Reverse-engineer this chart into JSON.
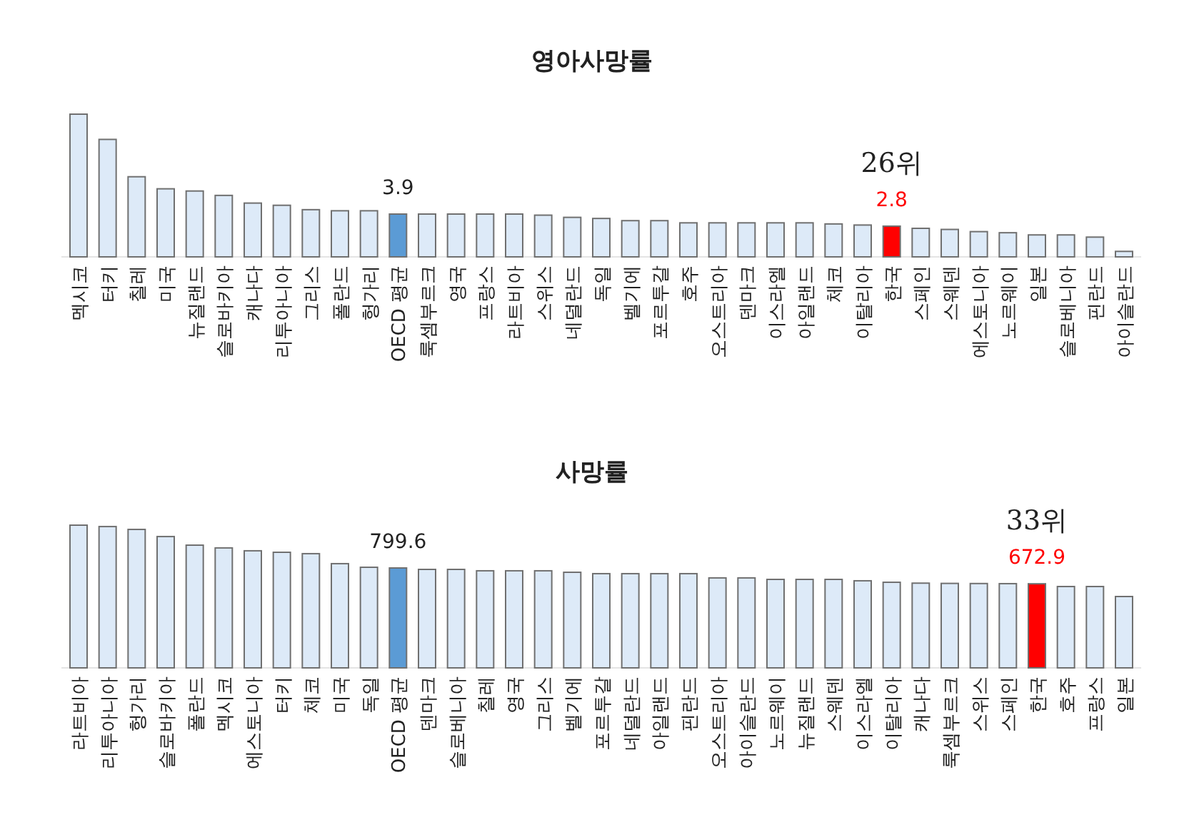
{
  "chart_data": [
    {
      "type": "bar",
      "title": "영아사망률",
      "categories": [
        "멕시코",
        "터키",
        "칠레",
        "미국",
        "뉴질랜드",
        "슬로바키아",
        "캐나다",
        "리투아니아",
        "그리스",
        "폴란드",
        "헝가리",
        "OECD 평균",
        "룩셈부르크",
        "영국",
        "프랑스",
        "라트비아",
        "스위스",
        "네덜란드",
        "독일",
        "벨기에",
        "포르투갈",
        "호주",
        "오스트리아",
        "덴마크",
        "이스라엘",
        "아일랜드",
        "체코",
        "이탈리아",
        "한국",
        "스페인",
        "스웨덴",
        "에스토니아",
        "노르웨이",
        "일본",
        "슬로베니아",
        "핀란드",
        "아이슬란드"
      ],
      "values": [
        13.0,
        10.7,
        7.3,
        6.2,
        6.0,
        5.6,
        4.9,
        4.7,
        4.3,
        4.2,
        4.2,
        3.9,
        3.9,
        3.9,
        3.9,
        3.9,
        3.8,
        3.6,
        3.5,
        3.3,
        3.3,
        3.1,
        3.1,
        3.1,
        3.1,
        3.1,
        3.0,
        2.9,
        2.8,
        2.6,
        2.5,
        2.3,
        2.2,
        2.0,
        2.0,
        1.8,
        0.5
      ],
      "colors": [
        "#ddeaf8",
        "#ddeaf8",
        "#ddeaf8",
        "#ddeaf8",
        "#ddeaf8",
        "#ddeaf8",
        "#ddeaf8",
        "#ddeaf8",
        "#ddeaf8",
        "#ddeaf8",
        "#ddeaf8",
        "#5b9bd5",
        "#ddeaf8",
        "#ddeaf8",
        "#ddeaf8",
        "#ddeaf8",
        "#ddeaf8",
        "#ddeaf8",
        "#ddeaf8",
        "#ddeaf8",
        "#ddeaf8",
        "#ddeaf8",
        "#ddeaf8",
        "#ddeaf8",
        "#ddeaf8",
        "#ddeaf8",
        "#ddeaf8",
        "#ddeaf8",
        "#ff0000",
        "#ddeaf8",
        "#ddeaf8",
        "#ddeaf8",
        "#ddeaf8",
        "#ddeaf8",
        "#ddeaf8",
        "#ddeaf8",
        "#ddeaf8"
      ],
      "value_labels": [
        null,
        null,
        null,
        null,
        null,
        null,
        null,
        null,
        null,
        null,
        null,
        "3.9",
        null,
        null,
        null,
        null,
        null,
        null,
        null,
        null,
        null,
        null,
        null,
        null,
        null,
        null,
        null,
        null,
        "2.8",
        null,
        null,
        null,
        null,
        null,
        null,
        null,
        null
      ],
      "annotations": [
        "26위"
      ]
    },
    {
      "type": "bar",
      "title": "사망률",
      "categories": [
        "라트비아",
        "리투아니아",
        "헝가리",
        "슬로바키아",
        "폴란드",
        "멕시코",
        "에스토니아",
        "터키",
        "체코",
        "미국",
        "독일",
        "OECD 평균",
        "덴마크",
        "슬로베니아",
        "칠레",
        "영국",
        "그리스",
        "벨기에",
        "포르투갈",
        "네덜란드",
        "아일랜드",
        "핀란드",
        "오스트리아",
        "아이슬란드",
        "노르웨이",
        "뉴질랜드",
        "스웨덴",
        "이스라엘",
        "이탈리아",
        "캐나다",
        "룩셈부르크",
        "스위스",
        "스페인",
        "한국",
        "호주",
        "프랑스",
        "일본"
      ],
      "values": [
        1142,
        1131,
        1108,
        1051,
        982,
        960,
        937,
        925,
        914,
        834,
        805,
        799.6,
        788,
        788,
        777,
        777,
        777,
        765,
        754,
        754,
        754,
        754,
        720,
        720,
        708,
        708,
        708,
        697,
        685,
        678,
        676,
        675,
        674,
        672.9,
        651,
        651,
        571
      ],
      "colors": [
        "#ddeaf8",
        "#ddeaf8",
        "#ddeaf8",
        "#ddeaf8",
        "#ddeaf8",
        "#ddeaf8",
        "#ddeaf8",
        "#ddeaf8",
        "#ddeaf8",
        "#ddeaf8",
        "#ddeaf8",
        "#5b9bd5",
        "#ddeaf8",
        "#ddeaf8",
        "#ddeaf8",
        "#ddeaf8",
        "#ddeaf8",
        "#ddeaf8",
        "#ddeaf8",
        "#ddeaf8",
        "#ddeaf8",
        "#ddeaf8",
        "#ddeaf8",
        "#ddeaf8",
        "#ddeaf8",
        "#ddeaf8",
        "#ddeaf8",
        "#ddeaf8",
        "#ddeaf8",
        "#ddeaf8",
        "#ddeaf8",
        "#ddeaf8",
        "#ddeaf8",
        "#ff0000",
        "#ddeaf8",
        "#ddeaf8",
        "#ddeaf8"
      ],
      "value_labels": [
        null,
        null,
        null,
        null,
        null,
        null,
        null,
        null,
        null,
        null,
        null,
        "799.6",
        null,
        null,
        null,
        null,
        null,
        null,
        null,
        null,
        null,
        null,
        null,
        null,
        null,
        null,
        null,
        null,
        null,
        null,
        null,
        null,
        null,
        "672.9",
        null,
        null,
        null
      ],
      "annotations": [
        "33위"
      ]
    }
  ]
}
